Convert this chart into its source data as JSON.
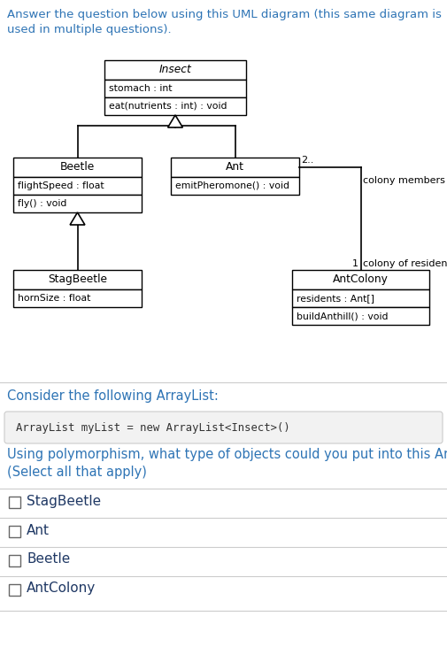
{
  "title_text": "Answer the question below using this UML diagram (this same diagram is\nused in multiple questions).",
  "title_color": "#2e74b5",
  "bg_color": "#ffffff",
  "insect_title": "Insect",
  "insect_fields": [
    "stomach : int"
  ],
  "insect_methods": [
    "eat(nutrients : int) : void"
  ],
  "beetle_title": "Beetle",
  "beetle_fields": [
    "flightSpeed : float"
  ],
  "beetle_methods": [
    "fly() : void"
  ],
  "ant_title": "Ant",
  "ant_fields": [],
  "ant_methods": [
    "emitPheromone() : void"
  ],
  "stagbeetle_title": "StagBeetle",
  "stagbeetle_fields": [
    "hornSize : float"
  ],
  "stagbeetle_methods": [],
  "antcolony_title": "AntColony",
  "antcolony_fields": [
    "residents : Ant[]"
  ],
  "antcolony_methods": [
    "buildAnthill() : void"
  ],
  "question_text": "Consider the following ArrayList:",
  "question_color": "#2e74b5",
  "code_text": "ArrayList myList = new ArrayList<Insect>()",
  "code_bg": "#f2f2f2",
  "poly_question_line1": "Using polymorphism, what type of objects could you put into this ArrayList?",
  "poly_question_line2": "(Select all that apply)",
  "poly_color": "#2e74b5",
  "choices": [
    "StagBeetle",
    "Ant",
    "Beetle",
    "AntColony"
  ],
  "choice_color": "#1f3864",
  "separator_color": "#cccccc",
  "label_2": "2..",
  "label_colony_members": "colony members",
  "label_1": "1",
  "label_colony_residence": "colony of residence"
}
